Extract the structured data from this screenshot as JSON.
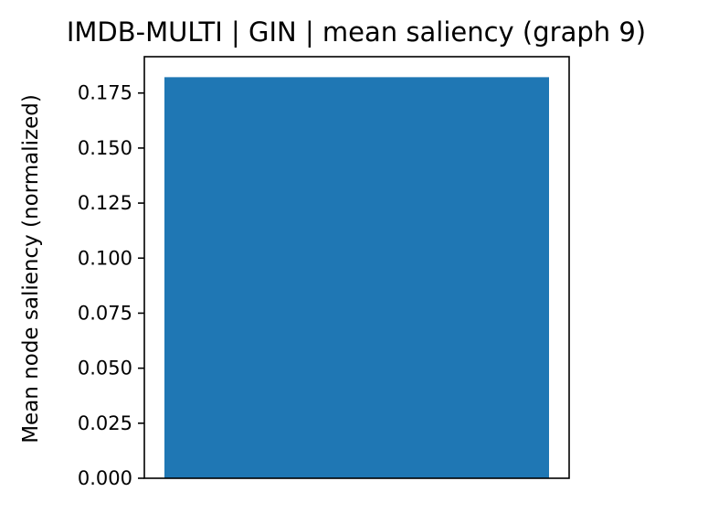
{
  "chart_data": {
    "type": "bar",
    "title": "IMDB-MULTI | GIN | mean saliency (graph 9)",
    "xlabel": "",
    "ylabel": "Mean node saliency (normalized)",
    "categories": [
      ""
    ],
    "values": [
      0.1822
    ],
    "ylim": [
      0,
      0.1915
    ],
    "yticks": [
      0.0,
      0.025,
      0.05,
      0.075,
      0.1,
      0.125,
      0.15,
      0.175
    ],
    "ytick_labels": [
      "0.000",
      "0.025",
      "0.050",
      "0.075",
      "0.100",
      "0.125",
      "0.150",
      "0.175"
    ],
    "show_xticks": false,
    "grid": false,
    "legend": "none",
    "colors": {
      "bar": "#1f77b4",
      "axis": "#000000",
      "background": "#ffffff"
    }
  }
}
